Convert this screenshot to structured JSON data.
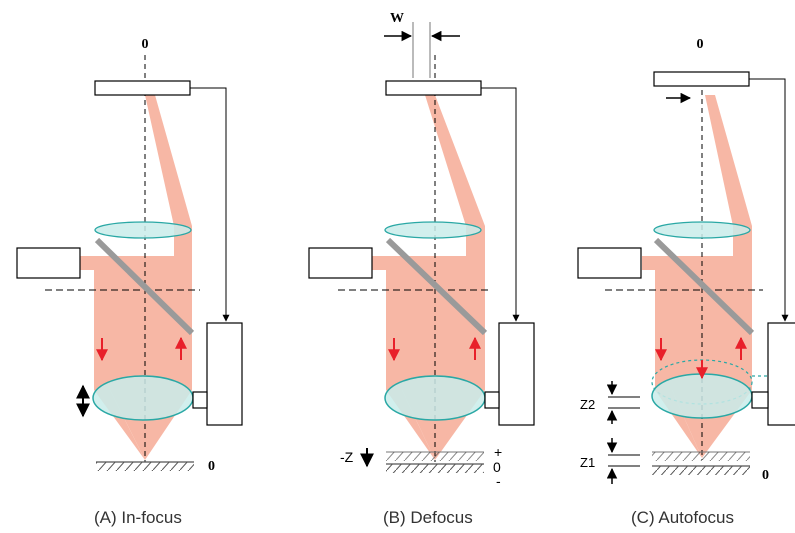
{
  "panels": [
    {
      "caption": "(A) In-focus",
      "top_label": "0",
      "sample_label": "0"
    },
    {
      "caption": "(B) Defocus",
      "width_label": "W",
      "z_label": "-Z",
      "plus_label": "+",
      "zero_label": "0",
      "minus_label": "-"
    },
    {
      "caption": "(C) Autofocus",
      "top_label": "0",
      "z2_label": "Z2",
      "z1_label": "Z1",
      "sample_label": "0"
    }
  ],
  "colors": {
    "beam": "#f7b7a5",
    "lens_fill": "#c9ecea",
    "lens_stroke": "#2aa8a5",
    "splitter": "#9a9a9a",
    "arrow_red": "#e8202a",
    "line": "#000000"
  }
}
